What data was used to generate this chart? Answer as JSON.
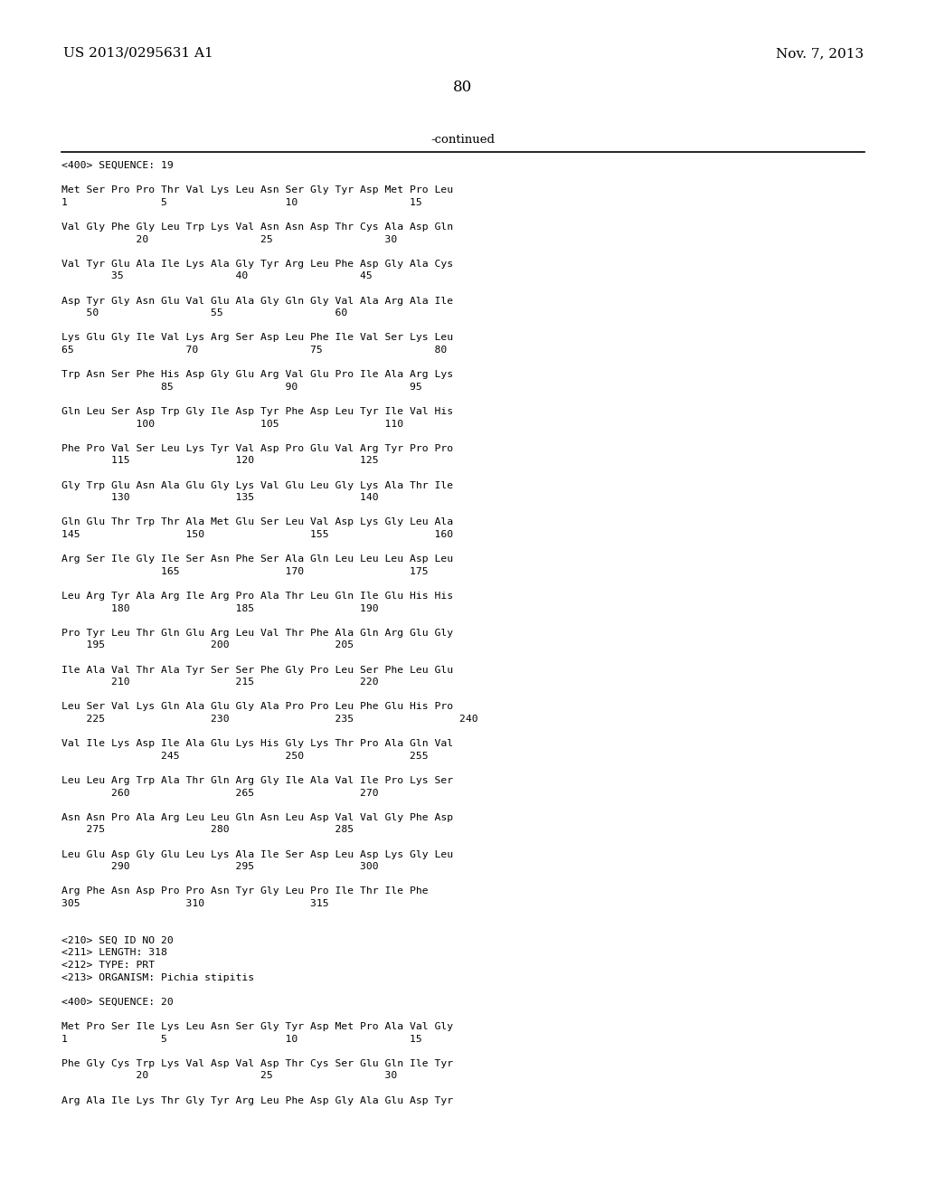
{
  "header_left": "US 2013/0295631 A1",
  "header_right": "Nov. 7, 2013",
  "page_number": "80",
  "continued_text": "-continued",
  "background_color": "#ffffff",
  "text_color": "#000000",
  "lines": [
    "<400> SEQUENCE: 19",
    "",
    "Met Ser Pro Pro Thr Val Lys Leu Asn Ser Gly Tyr Asp Met Pro Leu",
    "1               5                   10                  15",
    "",
    "Val Gly Phe Gly Leu Trp Lys Val Asn Asn Asp Thr Cys Ala Asp Gln",
    "            20                  25                  30",
    "",
    "Val Tyr Glu Ala Ile Lys Ala Gly Tyr Arg Leu Phe Asp Gly Ala Cys",
    "        35                  40                  45",
    "",
    "Asp Tyr Gly Asn Glu Val Glu Ala Gly Gln Gly Val Ala Arg Ala Ile",
    "    50                  55                  60",
    "",
    "Lys Glu Gly Ile Val Lys Arg Ser Asp Leu Phe Ile Val Ser Lys Leu",
    "65                  70                  75                  80",
    "",
    "Trp Asn Ser Phe His Asp Gly Glu Arg Val Glu Pro Ile Ala Arg Lys",
    "                85                  90                  95",
    "",
    "Gln Leu Ser Asp Trp Gly Ile Asp Tyr Phe Asp Leu Tyr Ile Val His",
    "            100                 105                 110",
    "",
    "Phe Pro Val Ser Leu Lys Tyr Val Asp Pro Glu Val Arg Tyr Pro Pro",
    "        115                 120                 125",
    "",
    "Gly Trp Glu Asn Ala Glu Gly Lys Val Glu Leu Gly Lys Ala Thr Ile",
    "        130                 135                 140",
    "",
    "Gln Glu Thr Trp Thr Ala Met Glu Ser Leu Val Asp Lys Gly Leu Ala",
    "145                 150                 155                 160",
    "",
    "Arg Ser Ile Gly Ile Ser Asn Phe Ser Ala Gln Leu Leu Leu Asp Leu",
    "                165                 170                 175",
    "",
    "Leu Arg Tyr Ala Arg Ile Arg Pro Ala Thr Leu Gln Ile Glu His His",
    "        180                 185                 190",
    "",
    "Pro Tyr Leu Thr Gln Glu Arg Leu Val Thr Phe Ala Gln Arg Glu Gly",
    "    195                 200                 205",
    "",
    "Ile Ala Val Thr Ala Tyr Ser Ser Phe Gly Pro Leu Ser Phe Leu Glu",
    "        210                 215                 220",
    "",
    "Leu Ser Val Lys Gln Ala Glu Gly Ala Pro Pro Leu Phe Glu His Pro",
    "    225                 230                 235                 240",
    "",
    "Val Ile Lys Asp Ile Ala Glu Lys His Gly Lys Thr Pro Ala Gln Val",
    "                245                 250                 255",
    "",
    "Leu Leu Arg Trp Ala Thr Gln Arg Gly Ile Ala Val Ile Pro Lys Ser",
    "        260                 265                 270",
    "",
    "Asn Asn Pro Ala Arg Leu Leu Gln Asn Leu Asp Val Val Gly Phe Asp",
    "    275                 280                 285",
    "",
    "Leu Glu Asp Gly Glu Leu Lys Ala Ile Ser Asp Leu Asp Lys Gly Leu",
    "        290                 295                 300",
    "",
    "Arg Phe Asn Asp Pro Pro Asn Tyr Gly Leu Pro Ile Thr Ile Phe",
    "305                 310                 315",
    "",
    "",
    "<210> SEQ ID NO 20",
    "<211> LENGTH: 318",
    "<212> TYPE: PRT",
    "<213> ORGANISM: Pichia stipitis",
    "",
    "<400> SEQUENCE: 20",
    "",
    "Met Pro Ser Ile Lys Leu Asn Ser Gly Tyr Asp Met Pro Ala Val Gly",
    "1               5                   10                  15",
    "",
    "Phe Gly Cys Trp Lys Val Asp Val Asp Thr Cys Ser Glu Gln Ile Tyr",
    "            20                  25                  30",
    "",
    "Arg Ala Ile Lys Thr Gly Tyr Arg Leu Phe Asp Gly Ala Glu Asp Tyr"
  ]
}
